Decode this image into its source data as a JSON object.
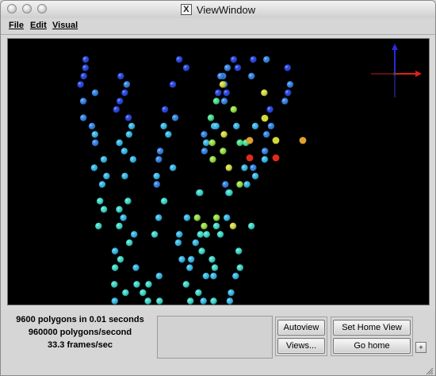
{
  "window": {
    "title": "ViewWindow",
    "x_logo": "X"
  },
  "menubar": {
    "items": [
      "File",
      "Edit",
      "Visual"
    ]
  },
  "stats": {
    "line1": "9600 polygons in 0.01 seconds",
    "line2": "960000 polygons/second",
    "line3": "33.3 frames/sec"
  },
  "buttons": {
    "autoview": "Autoview",
    "views": "Views...",
    "set_home": "Set Home View",
    "go_home": "Go home",
    "corner": "+"
  },
  "colors": {
    "viewport_background": "#000000",
    "axis_x": "#e0201a",
    "axis_y": "#2a2ad8",
    "sphere_palette": [
      "#1d3fe0",
      "#2b7fe6",
      "#2fb7e8",
      "#35d9c9",
      "#3ee08a",
      "#93e03a",
      "#d4d83a",
      "#e0a030",
      "#e02a1a"
    ]
  }
}
